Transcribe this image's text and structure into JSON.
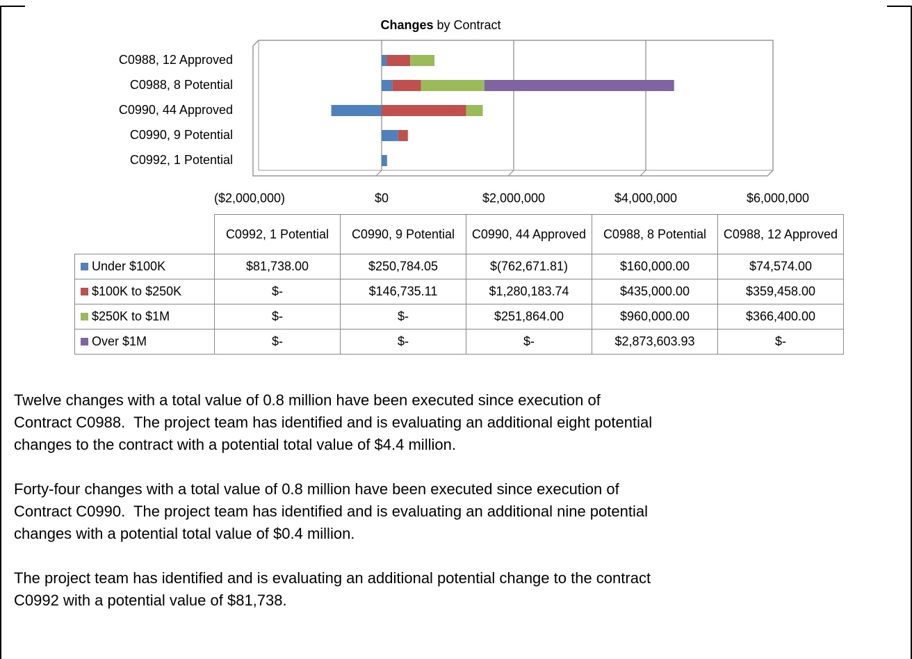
{
  "chart_data": {
    "type": "stacked-bar-horizontal",
    "title": [
      "Changes",
      "by Contract"
    ],
    "categories": [
      "C0992, 1 Potential",
      "C0990, 9 Potential",
      "C0990, 44 Approved",
      "C0988, 8 Potential",
      "C0988, 12 Approved"
    ],
    "series": [
      {
        "name": "Under $100K",
        "color": "#4f81bd",
        "values": [
          81738.0,
          250784.05,
          -762671.81,
          160000.0,
          74574.0
        ],
        "value_labels": [
          "$81,738.00",
          "$250,784.05",
          "$(762,671.81)",
          "$160,000.00",
          "$74,574.00"
        ]
      },
      {
        "name": "$100K to $250K",
        "color": "#c0504d",
        "values": [
          0,
          146735.11,
          1280183.74,
          435000.0,
          359458.0
        ],
        "value_labels": [
          "$-",
          "$146,735.11",
          "$1,280,183.74",
          "$435,000.00",
          "$359,458.00"
        ]
      },
      {
        "name": "$250K to $1M",
        "color": "#9bbb59",
        "values": [
          0,
          0,
          251864.0,
          960000.0,
          366400.0
        ],
        "value_labels": [
          "$-",
          "$-",
          "$251,864.00",
          "$960,000.00",
          "$366,400.00"
        ]
      },
      {
        "name": "Over $1M",
        "color": "#8064a2",
        "values": [
          0,
          0,
          0,
          2873603.93,
          0
        ],
        "value_labels": [
          "$-",
          "$-",
          "$-",
          "$2,873,603.93",
          "$-"
        ]
      }
    ],
    "xlim": [
      -2000000,
      6000000
    ],
    "xticks": [
      {
        "value": -2000000,
        "label": "($2,000,000)"
      },
      {
        "value": 0,
        "label": "$0"
      },
      {
        "value": 2000000,
        "label": "$2,000,000"
      },
      {
        "value": 4000000,
        "label": "$4,000,000"
      },
      {
        "value": 6000000,
        "label": "$6,000,000"
      }
    ],
    "negative_label_color": "#ff0000",
    "grid": true,
    "data_table": true
  },
  "paragraphs": [
    [
      "Twelve changes with a total value of 0.8 million have been executed since execution of",
      "Contract C0988.  The project team has identified and is evaluating an additional eight potential",
      "changes to the contract with a potential total value of $4.4 million."
    ],
    [
      "Forty-four changes with a total value of 0.8 million have been executed since execution of",
      "Contract C0990.  The project team has identified and is evaluating an additional nine potential",
      "changes with a potential total value of $0.4 million."
    ],
    [
      "The project team has identified and is evaluating an additional potential change to the contract",
      "C0992 with a potential value of $81,738."
    ]
  ]
}
